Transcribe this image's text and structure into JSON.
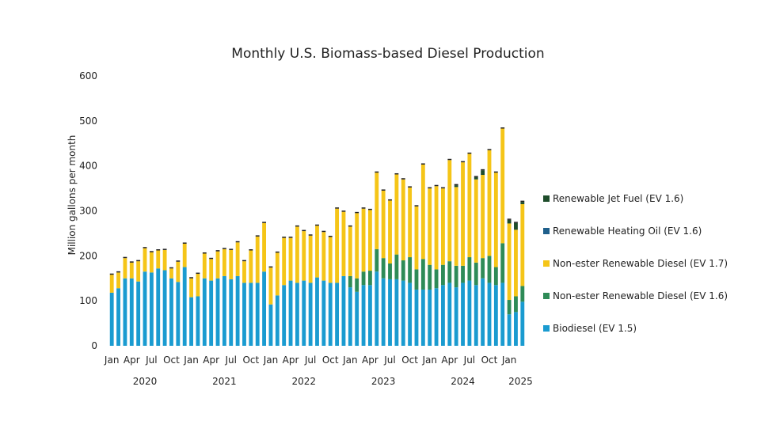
{
  "chart_data": {
    "type": "bar",
    "stacked": true,
    "title": "Monthly U.S. Biomass-based Diesel Production",
    "ylabel": "Million gallons per month",
    "xlabel": "",
    "ylim": [
      0,
      600
    ],
    "yticks": [
      0,
      100,
      200,
      300,
      400,
      500,
      600
    ],
    "grid": false,
    "legend_position": "right",
    "month_tick_labels": [
      "Jan",
      "Apr",
      "Jul",
      "Oct"
    ],
    "year_labels": [
      "2020",
      "2021",
      "2022",
      "2023",
      "2024",
      "2025"
    ],
    "categories": [
      "Jan 2020",
      "Feb 2020",
      "Mar 2020",
      "Apr 2020",
      "May 2020",
      "Jun 2020",
      "Jul 2020",
      "Aug 2020",
      "Sep 2020",
      "Oct 2020",
      "Nov 2020",
      "Dec 2020",
      "Jan 2021",
      "Feb 2021",
      "Mar 2021",
      "Apr 2021",
      "May 2021",
      "Jun 2021",
      "Jul 2021",
      "Aug 2021",
      "Sep 2021",
      "Oct 2021",
      "Nov 2021",
      "Dec 2021",
      "Jan 2022",
      "Feb 2022",
      "Mar 2022",
      "Apr 2022",
      "May 2022",
      "Jun 2022",
      "Jul 2022",
      "Aug 2022",
      "Sep 2022",
      "Oct 2022",
      "Nov 2022",
      "Dec 2022",
      "Jan 2023",
      "Feb 2023",
      "Mar 2023",
      "Apr 2023",
      "May 2023",
      "Jun 2023",
      "Jul 2023",
      "Aug 2023",
      "Sep 2023",
      "Oct 2023",
      "Nov 2023",
      "Dec 2023",
      "Jan 2024",
      "Feb 2024",
      "Mar 2024",
      "Apr 2024",
      "May 2024",
      "Jun 2024",
      "Jul 2024",
      "Aug 2024",
      "Sep 2024",
      "Oct 2024",
      "Nov 2024",
      "Dec 2024",
      "Jan 2025",
      "Feb 2025",
      "Mar 2025"
    ],
    "series": [
      {
        "name": "Biodiesel (EV 1.5)",
        "color": "#1a9bd0",
        "values": [
          118,
          128,
          150,
          150,
          143,
          165,
          163,
          172,
          168,
          150,
          142,
          175,
          108,
          110,
          150,
          145,
          150,
          155,
          148,
          155,
          140,
          140,
          140,
          165,
          92,
          112,
          135,
          145,
          140,
          145,
          140,
          152,
          145,
          140,
          140,
          155,
          130,
          120,
          135,
          135,
          165,
          150,
          148,
          148,
          145,
          140,
          125,
          125,
          125,
          128,
          135,
          140,
          130,
          140,
          145,
          135,
          150,
          140,
          135,
          140,
          70,
          75,
          98
        ]
      },
      {
        "name": "Non-ester Renewable Diesel (EV 1.6)",
        "color": "#2e8b57",
        "values": [
          0,
          0,
          0,
          0,
          0,
          0,
          0,
          0,
          0,
          0,
          0,
          0,
          0,
          0,
          0,
          0,
          0,
          0,
          0,
          0,
          0,
          0,
          0,
          0,
          0,
          0,
          0,
          0,
          0,
          0,
          0,
          0,
          0,
          0,
          0,
          0,
          25,
          30,
          30,
          32,
          50,
          45,
          35,
          55,
          45,
          57,
          45,
          68,
          55,
          42,
          45,
          48,
          48,
          38,
          52,
          50,
          45,
          60,
          40,
          88,
          32,
          35,
          35
        ]
      },
      {
        "name": "Non-ester Renewable Diesel (EV 1.7)",
        "color": "#f5c518",
        "values": [
          40,
          35,
          45,
          35,
          45,
          52,
          45,
          40,
          45,
          22,
          45,
          52,
          42,
          50,
          55,
          48,
          60,
          60,
          65,
          75,
          48,
          72,
          103,
          108,
          82,
          95,
          105,
          95,
          125,
          110,
          105,
          115,
          108,
          102,
          165,
          143,
          110,
          145,
          140,
          135,
          170,
          150,
          140,
          178,
          180,
          155,
          140,
          210,
          170,
          185,
          170,
          225,
          175,
          230,
          230,
          185,
          185,
          235,
          210,
          255,
          170,
          148,
          182
        ]
      },
      {
        "name": "Renewable Heating Oil (EV 1.6)",
        "color": "#1f5f8b",
        "values": [
          0,
          0,
          0,
          0,
          0,
          0,
          0,
          0,
          0,
          0,
          0,
          0,
          0,
          0,
          0,
          0,
          0,
          0,
          0,
          0,
          0,
          0,
          0,
          0,
          0,
          0,
          0,
          0,
          0,
          0,
          0,
          0,
          0,
          0,
          0,
          0,
          0,
          0,
          0,
          0,
          0,
          0,
          0,
          0,
          0,
          0,
          0,
          0,
          0,
          0,
          0,
          0,
          0,
          0,
          0,
          0,
          0,
          0,
          0,
          0,
          0,
          0,
          0
        ]
      },
      {
        "name": "Renewable Jet Fuel (EV 1.6)",
        "color": "#1e4d2b",
        "values": [
          0,
          0,
          0,
          0,
          0,
          0,
          0,
          0,
          0,
          0,
          0,
          0,
          0,
          0,
          0,
          0,
          0,
          0,
          0,
          0,
          0,
          0,
          0,
          0,
          0,
          0,
          0,
          0,
          0,
          0,
          0,
          0,
          0,
          0,
          0,
          0,
          0,
          0,
          0,
          0,
          0,
          0,
          0,
          0,
          0,
          0,
          0,
          0,
          0,
          0,
          0,
          0,
          4,
          0,
          0,
          5,
          10,
          0,
          0,
          0,
          8,
          15,
          5
        ]
      }
    ]
  }
}
